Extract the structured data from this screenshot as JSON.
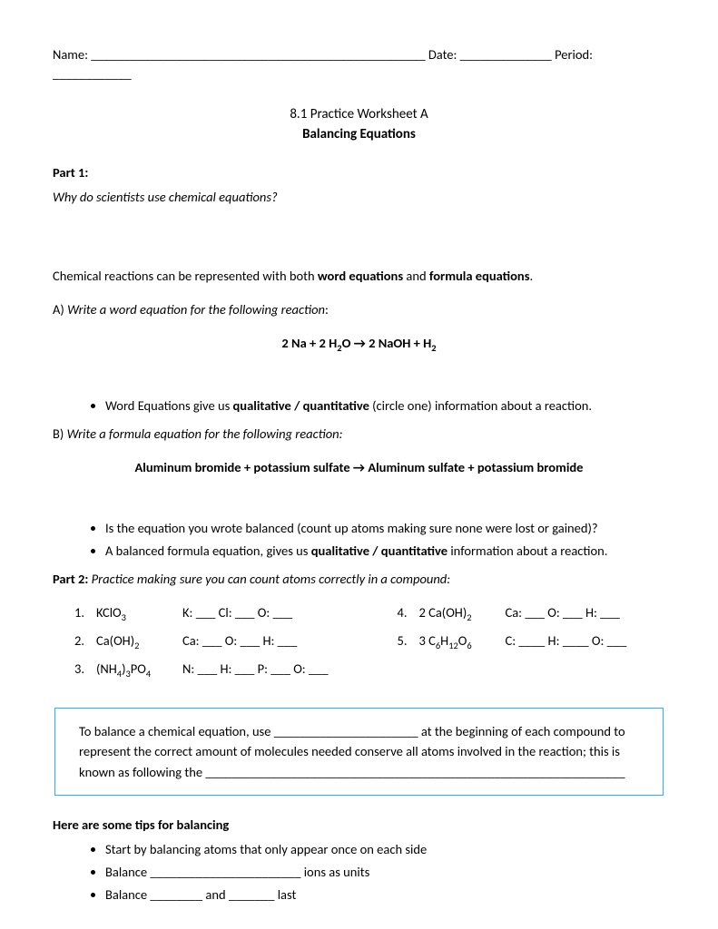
{
  "header": {
    "name_label": "Name: ___________________________________________________",
    "date_label": "Date: ______________",
    "period_label": "Period: ____________"
  },
  "title_line1": "8.1 Practice Worksheet A",
  "title_line2": "Balancing Equations",
  "part1": {
    "label": "Part 1:",
    "question": "Why do scientists use chemical equations?",
    "intro_pre": "Chemical reactions can be represented with both ",
    "intro_b1": "word equations",
    "intro_mid": " and ",
    "intro_b2": "formula equations",
    "intro_post": ".",
    "a_label": "A) ",
    "a_text": "Write a word equation for the following reaction",
    "a_colon": ":",
    "equation_a": "2 Na + 2 H",
    "equation_a2": "O   →  2 NaOH +  H",
    "bullet_a_pre": "Word Equations give us ",
    "bullet_a_bold": "qualitative / quantitative",
    "bullet_a_post": " (circle one) information about a reaction.",
    "b_label": "B) ",
    "b_text": "Write a formula equation for the following reaction:",
    "equation_b": "Aluminum bromide + potassium sulfate → Aluminum sulfate + potassium bromide",
    "bullet_b1": "Is the equation you wrote balanced (count up atoms making sure none were lost or gained)?",
    "bullet_b2_pre": "A balanced formula equation, gives us ",
    "bullet_b2_bold": "qualitative / quantitative",
    "bullet_b2_post": " information about a reaction."
  },
  "part2": {
    "label": "Part 2:",
    "text": " Practice making sure you can count atoms correctly in a compound:",
    "left": [
      {
        "n": "1.",
        "f": "KClO",
        "s": "3",
        "c": "K: ___  Cl: ___ O: ___"
      },
      {
        "n": "2.",
        "f": "Ca(OH)",
        "s": "2",
        "c": "Ca: ___ O: ___ H: ___"
      },
      {
        "n": "3.",
        "f_html": "(NH<span class=\"sub\">4</span>)<span class=\"sub\">3</span>PO<span class=\"sub\">4</span>",
        "c": "N: ___ H: ___ P: ___ O: ___"
      }
    ],
    "right": [
      {
        "n": "4.",
        "f_pre": "2 Ca(OH)",
        "s": "2",
        "c": "Ca: ___ O: ___ H: ___"
      },
      {
        "n": "5.",
        "f_html": "3 C<span class=\"sub\">6</span>H<span class=\"sub\">12</span>O<span class=\"sub\">6</span>",
        "c": "C: ____ H: ____ O: ___"
      }
    ]
  },
  "box": {
    "line1": "To balance a chemical equation, use ______________________ at the beginning of each compound to represent the correct amount of molecules needed conserve all atoms involved in the reaction; this is known as following the ________________________________________________________________"
  },
  "tips": {
    "heading": "Here are some tips for balancing",
    "b1": "Start by balancing atoms that only appear once on each side",
    "b2": "Balance _______________________ ions as units",
    "b3": "Balance ________ and _______ last"
  }
}
